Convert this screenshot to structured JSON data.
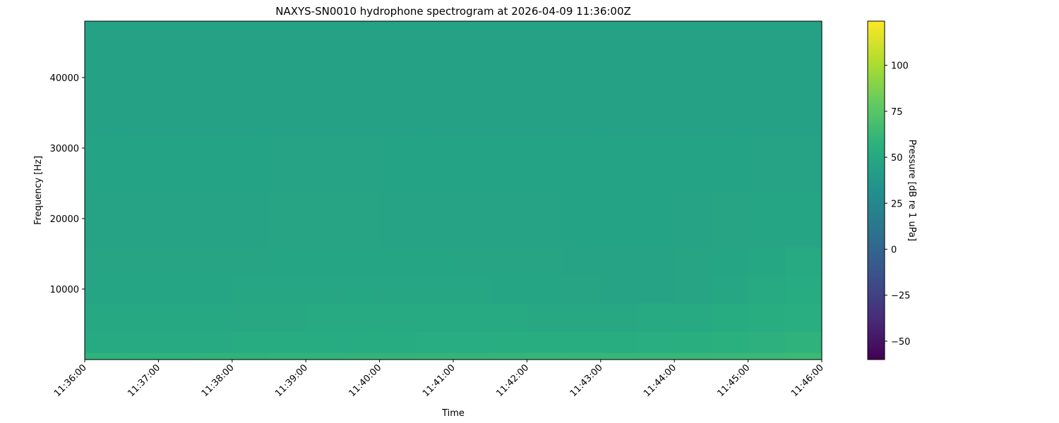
{
  "chart_data": {
    "type": "heatmap",
    "title": "NAXYS-SN0010 hydrophone spectrogram at 2026-04-09 11:36:00Z",
    "xlabel": "Time",
    "ylabel": "Frequency [Hz]",
    "colorbar_label": "Pressure [dB re 1 uPa]",
    "colormap": "viridis",
    "color_range": [
      -60,
      124
    ],
    "colorbar_ticks": [
      -50,
      -25,
      0,
      25,
      50,
      75,
      100
    ],
    "ylim": [
      0,
      48000
    ],
    "yticks": [
      10000,
      20000,
      30000,
      40000
    ],
    "xticks": [
      "11:36:00",
      "11:37:00",
      "11:38:00",
      "11:39:00",
      "11:40:00",
      "11:41:00",
      "11:42:00",
      "11:43:00",
      "11:44:00",
      "11:45:00",
      "11:46:00"
    ],
    "time_bin_edges": [
      "11:36:00",
      "11:36:30",
      "11:37:00",
      "11:37:30",
      "11:38:00",
      "11:38:30",
      "11:39:00",
      "11:39:30",
      "11:40:00",
      "11:40:30",
      "11:41:00",
      "11:41:30",
      "11:42:00",
      "11:42:30",
      "11:43:00",
      "11:43:30",
      "11:44:00",
      "11:44:30",
      "11:45:00",
      "11:45:30",
      "11:46:00"
    ],
    "freq_bin_edges": [
      0,
      1000,
      4000,
      8000,
      12000,
      16000,
      24000,
      32000,
      40000,
      48000
    ],
    "values_db": [
      [
        58,
        58,
        58,
        58.5,
        58.5,
        59,
        59,
        59.5,
        59.5,
        60,
        60,
        60.5,
        61,
        61,
        61.5,
        62,
        62,
        62.5,
        63,
        64
      ],
      [
        52,
        52,
        52,
        52,
        52.5,
        52.5,
        53,
        53,
        53,
        53.5,
        53.5,
        54,
        54,
        54,
        54.5,
        55,
        55.5,
        56,
        57,
        58
      ],
      [
        50,
        50,
        50,
        50,
        50.5,
        50.5,
        51,
        51,
        51,
        51,
        51,
        51,
        50.5,
        50.5,
        50.5,
        51,
        52,
        53,
        54,
        55
      ],
      [
        48,
        48,
        48,
        48,
        48.5,
        48.5,
        49,
        49.5,
        49,
        49,
        48.5,
        48,
        47.5,
        47,
        46.5,
        46.5,
        47,
        48.5,
        51,
        53
      ],
      [
        47,
        47,
        47,
        47,
        47,
        47.5,
        48,
        48,
        47.5,
        47.5,
        47,
        47,
        47,
        46.5,
        46.5,
        46.5,
        47,
        48,
        49.5,
        51
      ],
      [
        46.5,
        46.5,
        46.5,
        46.5,
        46.5,
        47,
        47,
        47,
        46.5,
        46.5,
        46.5,
        46.5,
        46.5,
        46,
        46,
        46,
        46.5,
        47,
        47.5,
        48
      ],
      [
        46,
        46,
        46,
        46,
        46,
        46.5,
        46.5,
        46.5,
        46,
        46,
        46,
        46,
        46,
        46,
        46,
        46,
        46,
        46,
        46.5,
        46.5
      ],
      [
        45.5,
        45.5,
        45.5,
        45.5,
        45.5,
        45.5,
        45.5,
        45.5,
        45.5,
        45.5,
        45.5,
        45.5,
        45.5,
        45.5,
        45.5,
        45.5,
        45.5,
        45.5,
        45.5,
        45.5
      ],
      [
        45,
        45,
        45,
        45,
        45,
        45,
        45,
        45,
        45,
        45,
        45,
        45,
        45,
        45,
        45,
        45,
        45,
        45,
        45,
        45
      ]
    ]
  }
}
